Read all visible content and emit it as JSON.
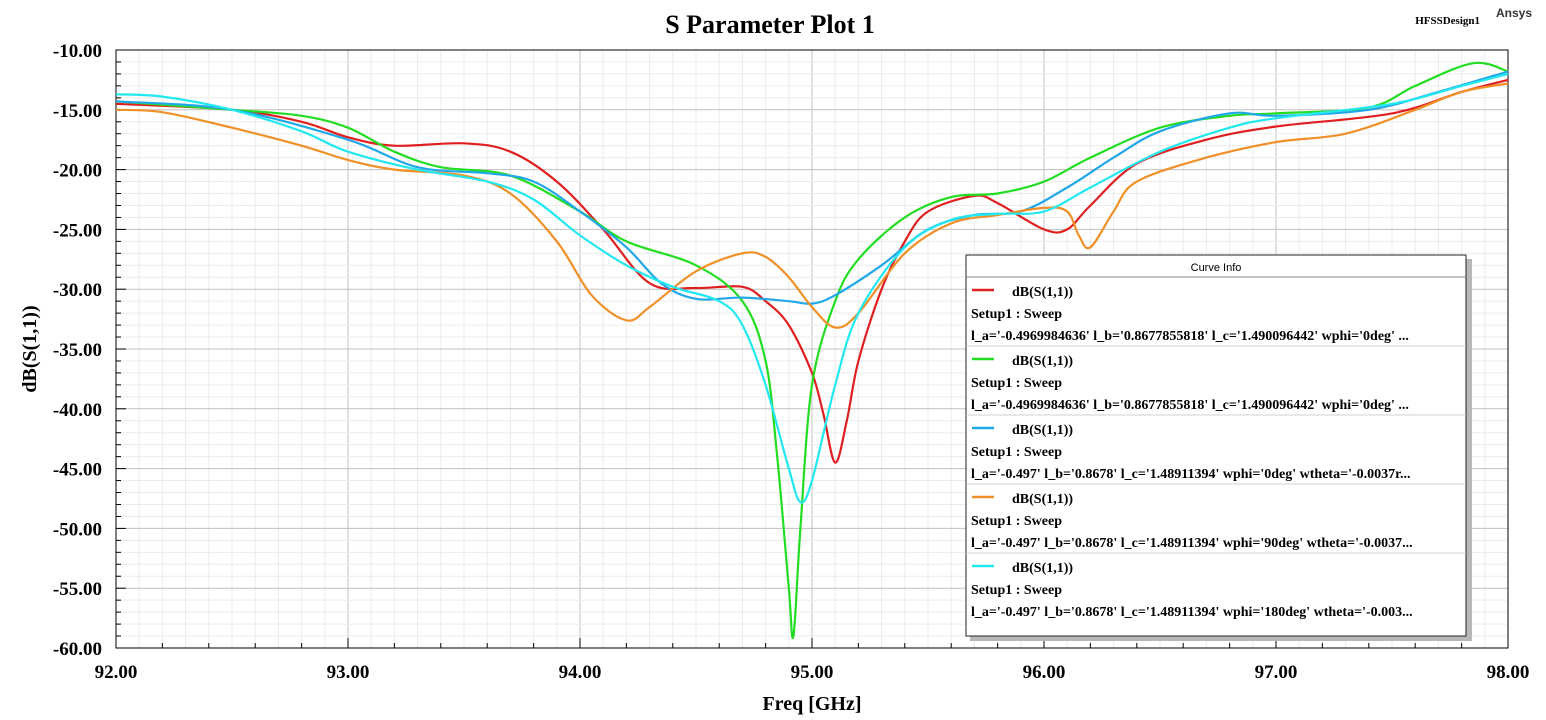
{
  "header": {
    "title": "S Parameter Plot 1",
    "design_name": "HFSSDesign1",
    "brand": "Ansys"
  },
  "legend": {
    "header": "Curve Info"
  },
  "chart_data": {
    "type": "line",
    "title": "S Parameter Plot 1",
    "xlabel": "Freq [GHz]",
    "ylabel": "dB(S(1,1))",
    "xlim": [
      92.0,
      98.0
    ],
    "ylim": [
      -60.0,
      -10.0
    ],
    "xticks": [
      "92.00",
      "93.00",
      "94.00",
      "95.00",
      "96.00",
      "97.00",
      "98.00"
    ],
    "yticks": [
      "-10.00",
      "-15.00",
      "-20.00",
      "-25.00",
      "-30.00",
      "-35.00",
      "-40.00",
      "-45.00",
      "-50.00",
      "-55.00",
      "-60.00"
    ],
    "grid": true,
    "legend_position": "bottom-right",
    "series": [
      {
        "name": "dB(S(1,1))",
        "setup": "Setup1 : Sweep",
        "params": "l_a='-0.4969984636' l_b='0.8677855818' l_c='1.490096442' wphi='0deg' ...",
        "color": "#e02020",
        "points": [
          [
            92.0,
            -14.5
          ],
          [
            92.5,
            -15.0
          ],
          [
            92.8,
            -16.0
          ],
          [
            93.0,
            -17.3
          ],
          [
            93.2,
            -18.0
          ],
          [
            93.5,
            -17.8
          ],
          [
            93.7,
            -18.5
          ],
          [
            93.9,
            -21.0
          ],
          [
            94.1,
            -25.0
          ],
          [
            94.3,
            -29.5
          ],
          [
            94.5,
            -29.9
          ],
          [
            94.7,
            -29.8
          ],
          [
            94.8,
            -31.0
          ],
          [
            94.9,
            -33.0
          ],
          [
            95.0,
            -37.0
          ],
          [
            95.05,
            -40.5
          ],
          [
            95.1,
            -44.5
          ],
          [
            95.15,
            -41.0
          ],
          [
            95.2,
            -36.0
          ],
          [
            95.3,
            -30.0
          ],
          [
            95.4,
            -26.0
          ],
          [
            95.5,
            -23.5
          ],
          [
            95.7,
            -22.2
          ],
          [
            95.8,
            -22.8
          ],
          [
            96.0,
            -25.0
          ],
          [
            96.1,
            -25.0
          ],
          [
            96.2,
            -23.0
          ],
          [
            96.4,
            -19.5
          ],
          [
            96.7,
            -17.5
          ],
          [
            97.0,
            -16.4
          ],
          [
            97.5,
            -15.3
          ],
          [
            97.8,
            -13.5
          ],
          [
            98.0,
            -12.5
          ]
        ]
      },
      {
        "name": "dB(S(1,1))",
        "setup": "Setup1 : Sweep",
        "params": "l_a='-0.4969984636' l_b='0.8677855818' l_c='1.490096442' wphi='0deg' ...",
        "color": "#22dd22",
        "points": [
          [
            92.0,
            -14.3
          ],
          [
            92.5,
            -15.0
          ],
          [
            92.8,
            -15.5
          ],
          [
            93.0,
            -16.5
          ],
          [
            93.2,
            -18.5
          ],
          [
            93.4,
            -19.8
          ],
          [
            93.7,
            -20.5
          ],
          [
            94.0,
            -23.5
          ],
          [
            94.2,
            -26.0
          ],
          [
            94.5,
            -28.0
          ],
          [
            94.7,
            -31.0
          ],
          [
            94.8,
            -36.0
          ],
          [
            94.85,
            -44.0
          ],
          [
            94.9,
            -55.0
          ],
          [
            94.92,
            -59.0
          ],
          [
            94.95,
            -50.0
          ],
          [
            95.0,
            -38.0
          ],
          [
            95.1,
            -31.0
          ],
          [
            95.2,
            -27.5
          ],
          [
            95.4,
            -24.0
          ],
          [
            95.6,
            -22.3
          ],
          [
            95.8,
            -22.0
          ],
          [
            96.0,
            -21.0
          ],
          [
            96.2,
            -19.0
          ],
          [
            96.5,
            -16.5
          ],
          [
            96.8,
            -15.5
          ],
          [
            97.0,
            -15.3
          ],
          [
            97.4,
            -14.8
          ],
          [
            97.6,
            -13.0
          ],
          [
            97.85,
            -11.1
          ],
          [
            98.0,
            -11.8
          ]
        ]
      },
      {
        "name": "dB(S(1,1))",
        "setup": "Setup1 : Sweep",
        "params": "l_a='-0.497' l_b='0.8678' l_c='1.48911394' wphi='0deg' wtheta='-0.0037r...",
        "color": "#22a8e8",
        "points": [
          [
            92.0,
            -14.3
          ],
          [
            92.5,
            -15.0
          ],
          [
            93.0,
            -17.5
          ],
          [
            93.3,
            -19.8
          ],
          [
            93.6,
            -20.3
          ],
          [
            93.8,
            -21.0
          ],
          [
            94.0,
            -23.5
          ],
          [
            94.2,
            -26.5
          ],
          [
            94.35,
            -29.5
          ],
          [
            94.5,
            -30.8
          ],
          [
            94.7,
            -30.7
          ],
          [
            94.9,
            -31.0
          ],
          [
            95.0,
            -31.2
          ],
          [
            95.1,
            -30.5
          ],
          [
            95.3,
            -28.0
          ],
          [
            95.5,
            -25.0
          ],
          [
            95.7,
            -23.8
          ],
          [
            95.9,
            -23.5
          ],
          [
            96.1,
            -21.5
          ],
          [
            96.3,
            -19.0
          ],
          [
            96.5,
            -16.8
          ],
          [
            96.8,
            -15.3
          ],
          [
            97.0,
            -15.5
          ],
          [
            97.4,
            -15.0
          ],
          [
            97.7,
            -13.5
          ],
          [
            98.0,
            -11.8
          ]
        ]
      },
      {
        "name": "dB(S(1,1))",
        "setup": "Setup1 : Sweep",
        "params": "l_a='-0.497' l_b='0.8678' l_c='1.48911394' wphi='90deg' wtheta='-0.0037...",
        "color": "#f09028",
        "points": [
          [
            92.0,
            -15.0
          ],
          [
            92.2,
            -15.2
          ],
          [
            92.5,
            -16.5
          ],
          [
            92.8,
            -18.0
          ],
          [
            93.0,
            -19.2
          ],
          [
            93.2,
            -20.0
          ],
          [
            93.5,
            -20.5
          ],
          [
            93.7,
            -22.0
          ],
          [
            93.9,
            -26.0
          ],
          [
            94.05,
            -30.5
          ],
          [
            94.2,
            -32.6
          ],
          [
            94.3,
            -31.5
          ],
          [
            94.5,
            -28.5
          ],
          [
            94.7,
            -27.0
          ],
          [
            94.8,
            -27.3
          ],
          [
            94.9,
            -29.0
          ],
          [
            95.0,
            -31.5
          ],
          [
            95.1,
            -33.2
          ],
          [
            95.2,
            -32.0
          ],
          [
            95.4,
            -27.0
          ],
          [
            95.6,
            -24.5
          ],
          [
            95.8,
            -23.8
          ],
          [
            96.0,
            -23.2
          ],
          [
            96.1,
            -23.5
          ],
          [
            96.15,
            -25.5
          ],
          [
            96.2,
            -26.5
          ],
          [
            96.3,
            -23.5
          ],
          [
            96.4,
            -21.0
          ],
          [
            96.7,
            -19.0
          ],
          [
            97.0,
            -17.7
          ],
          [
            97.3,
            -17.0
          ],
          [
            97.6,
            -15.0
          ],
          [
            97.8,
            -13.5
          ],
          [
            98.0,
            -12.8
          ]
        ]
      },
      {
        "name": "dB(S(1,1))",
        "setup": "Setup1 : Sweep",
        "params": "l_a='-0.497' l_b='0.8678' l_c='1.48911394' wphi='180deg' wtheta='-0.003...",
        "color": "#22e8f0",
        "points": [
          [
            92.0,
            -13.7
          ],
          [
            92.2,
            -13.9
          ],
          [
            92.5,
            -15.0
          ],
          [
            92.8,
            -16.8
          ],
          [
            93.0,
            -18.5
          ],
          [
            93.3,
            -20.0
          ],
          [
            93.6,
            -21.0
          ],
          [
            93.8,
            -22.5
          ],
          [
            94.0,
            -25.5
          ],
          [
            94.2,
            -28.0
          ],
          [
            94.4,
            -29.8
          ],
          [
            94.6,
            -31.0
          ],
          [
            94.7,
            -33.0
          ],
          [
            94.8,
            -38.0
          ],
          [
            94.9,
            -45.0
          ],
          [
            94.95,
            -47.8
          ],
          [
            95.0,
            -46.0
          ],
          [
            95.1,
            -38.0
          ],
          [
            95.2,
            -32.0
          ],
          [
            95.4,
            -26.5
          ],
          [
            95.6,
            -24.2
          ],
          [
            95.8,
            -23.7
          ],
          [
            96.0,
            -23.5
          ],
          [
            96.2,
            -21.5
          ],
          [
            96.5,
            -18.5
          ],
          [
            96.8,
            -16.5
          ],
          [
            97.0,
            -15.7
          ],
          [
            97.5,
            -14.5
          ],
          [
            97.8,
            -13.0
          ],
          [
            98.0,
            -12.0
          ]
        ]
      }
    ]
  }
}
